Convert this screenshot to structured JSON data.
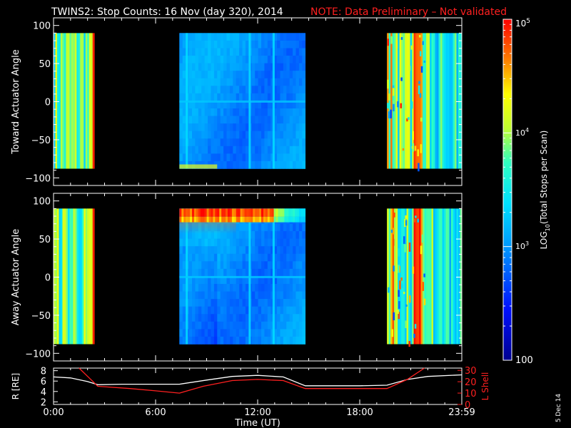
{
  "title": {
    "text": "TWINS2: Stop Counts: 16 Nov (day 320), 2014",
    "note": "NOTE: Data Preliminary – Not validated",
    "note_color": "#ff2020"
  },
  "datestamp": "5 Dec 14",
  "colors": {
    "background": "#000000",
    "axes": "#ffffff",
    "r_line": "#ffffff",
    "l_shell_line": "#ff2020"
  },
  "chart_data": [
    {
      "type": "heatmap",
      "name": "toward-panel",
      "ylabel": "Toward Actuator Angle",
      "ylim": [
        -110,
        110
      ],
      "yticks": [
        100,
        50,
        0,
        -50,
        -100
      ],
      "ytick_labels": [
        "100",
        "50",
        "0",
        "−50",
        "−100"
      ],
      "xlim": [
        0,
        24
      ],
      "z_scale": "log",
      "data_y_range": [
        -88,
        90
      ],
      "data_blocks": [
        {
          "t_start": 0.0,
          "t_end": 2.4,
          "level": "high"
        },
        {
          "t_start": 7.4,
          "t_end": 14.8,
          "level": "low"
        },
        {
          "t_start": 19.6,
          "t_end": 24.0,
          "level": "high"
        }
      ]
    },
    {
      "type": "heatmap",
      "name": "away-panel",
      "ylabel": "Away Actuator Angle",
      "ylim": [
        -110,
        110
      ],
      "yticks": [
        100,
        50,
        0,
        -50,
        -100
      ],
      "ytick_labels": [
        "100",
        "50",
        "0",
        "−50",
        "−100"
      ],
      "xlim": [
        0,
        24
      ],
      "z_scale": "log",
      "data_y_range": [
        -88,
        90
      ],
      "data_blocks": [
        {
          "t_start": 0.0,
          "t_end": 2.4,
          "level": "high"
        },
        {
          "t_start": 7.4,
          "t_end": 14.8,
          "level": "low",
          "hot_band_y": [
            72,
            90
          ]
        },
        {
          "t_start": 19.6,
          "t_end": 24.0,
          "level": "high"
        }
      ]
    },
    {
      "type": "line",
      "name": "orbit-panel",
      "xlabel": "Time (UT)",
      "xlim": [
        0,
        24
      ],
      "xticks": [
        0,
        6,
        12,
        18,
        24
      ],
      "xtick_labels": [
        "0:00",
        "6:00",
        "12:00",
        "18:00",
        "23:59"
      ],
      "ylabel_left": "R [RE]",
      "ylim_left": [
        1.5,
        8.5
      ],
      "yticks_left": [
        "8",
        "6",
        "4",
        "2"
      ],
      "ylabel_right": "L Shell",
      "ylim_right": [
        0,
        32
      ],
      "yticks_right": [
        "30",
        "20",
        "10",
        "0"
      ],
      "series": [
        {
          "name": "R [RE]",
          "axis": "left",
          "x": [
            0,
            1,
            2,
            2.6,
            4,
            6,
            7.4,
            9,
            10.5,
            12,
            13.5,
            14.8,
            16,
            18,
            19.6,
            20.8,
            22,
            24
          ],
          "y": [
            6.8,
            6.6,
            5.9,
            5.3,
            5.4,
            5.4,
            5.4,
            6.2,
            6.9,
            7.1,
            6.8,
            5.1,
            5.1,
            5.1,
            5.2,
            6.3,
            6.9,
            7.2
          ]
        },
        {
          "name": "L Shell",
          "axis": "right",
          "x": [
            1.5,
            2.6,
            4.5,
            6,
            7.4,
            8.8,
            10.5,
            12,
            13.5,
            14.8,
            16,
            18,
            19.6,
            20.8,
            21.8
          ],
          "y": [
            32,
            16,
            14,
            12,
            10,
            16,
            21,
            22,
            21,
            14,
            14,
            14,
            14,
            22,
            32
          ]
        }
      ]
    }
  ],
  "colorbar": {
    "label": "LOG10(Total Stops per Scan)",
    "label_main": "LOG",
    "label_sub": "10",
    "label_rest": "(Total Stops per Scan)",
    "scale": "log",
    "range": [
      100,
      100000
    ],
    "tick_100": "100",
    "tick_1e3": {
      "base": "10",
      "exp": "3"
    },
    "tick_1e4": {
      "base": "10",
      "exp": "4"
    },
    "tick_1e5": {
      "base": "10",
      "exp": "5"
    }
  }
}
